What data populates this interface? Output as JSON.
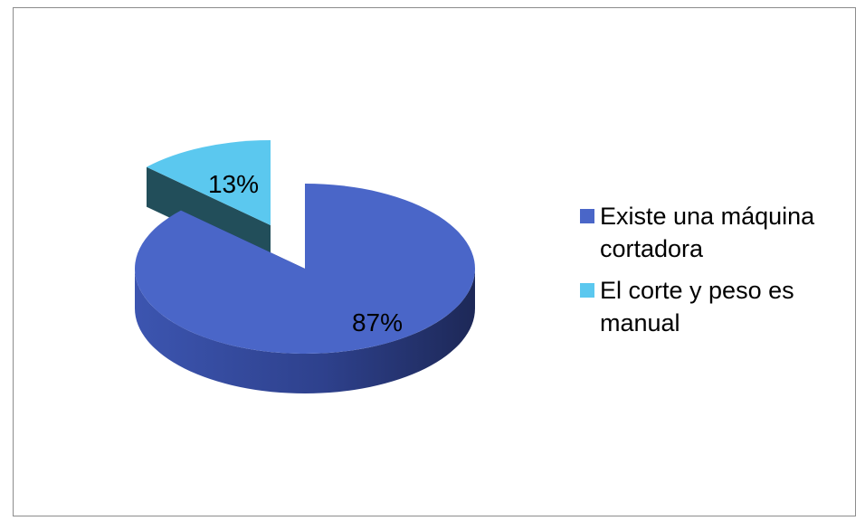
{
  "chart_data": {
    "type": "pie",
    "slices": [
      {
        "label": "Existe una máquina cortadora",
        "value": 87,
        "data_label": "87%",
        "color": "#4A66C8"
      },
      {
        "label": "El corte y peso es manual",
        "value": 13,
        "data_label": "13%",
        "color": "#5BC8EF"
      }
    ],
    "legend_position": "right",
    "style": "3d-exploded"
  }
}
